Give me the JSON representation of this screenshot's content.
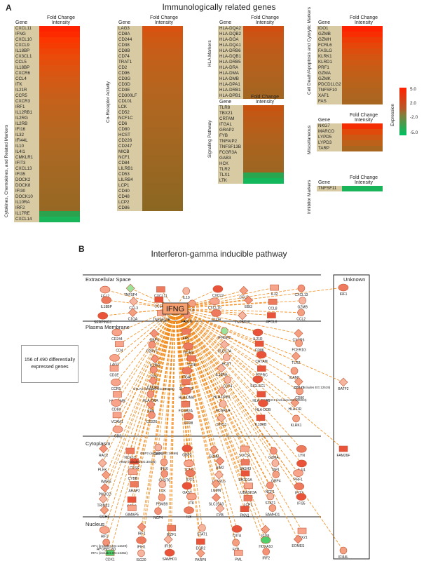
{
  "panel_a": {
    "letter": "A",
    "title": "Immunologically related genes",
    "gene_header": "Gene",
    "fc_header_1": "Fold Change",
    "fc_header_2": "Intensity",
    "groups": [
      {
        "label": "Cytokines, Chemokines, and Related Markers",
        "genes": [
          "CXCL11",
          "IFNG",
          "CXCL10",
          "CXCL9",
          "IL18BP",
          "CX3CL1",
          "CCL5",
          "IL18BP",
          "CXCR6",
          "CCL4",
          "ITK",
          "IL21R",
          "CCR5",
          "CXCR3",
          "IRF1",
          "IL12RB1",
          "IL2RG",
          "IL2RB",
          "IFI16",
          "IL32",
          "IFI44L",
          "IL10",
          "IL4I1",
          "CMKLR1",
          "IFIT3",
          "CXCL13",
          "IFI35",
          "DOCK2",
          "DOCK8",
          "IFI30",
          "DOCK10",
          "IL10RA",
          "IRF2",
          "IL17RE",
          "CXCL14"
        ],
        "colors": [
          "#ff2200",
          "#fd2a00",
          "#fb3600",
          "#f53d03",
          "#ef4407",
          "#ea4a0a",
          "#e44e0d",
          "#de530f",
          "#d95612",
          "#d35914",
          "#cf5b16",
          "#cb5d18",
          "#c75f1a",
          "#c4611b",
          "#c1621c",
          "#be631d",
          "#bb641e",
          "#b8651f",
          "#b56620",
          "#b36721",
          "#b06721",
          "#ae6822",
          "#ab6822",
          "#a96823",
          "#a76823",
          "#a56823",
          "#a36823",
          "#a16823",
          "#9f6823",
          "#9d6823",
          "#9b6823",
          "#996823",
          "#976823",
          "#2ba34e",
          "#18b55a"
        ]
      },
      {
        "label": "Co-Receptor Activity",
        "genes": [
          "LAG3",
          "CD8A",
          "CD244",
          "CD38",
          "CD8B",
          "CD74",
          "TRAT1",
          "CD2",
          "CD96",
          "CD3G",
          "CD3D",
          "CD3E",
          "CD300LF",
          "CD101",
          "LCK",
          "CD52",
          "NCF1C",
          "CD6",
          "CD80",
          "HCST",
          "CD226",
          "CD247",
          "MICB",
          "NCF1",
          "CD84",
          "LILRB1",
          "CD53",
          "LILRB4",
          "LCP1",
          "CD40",
          "CD48",
          "LCP2",
          "CD86"
        ],
        "colors": [
          "#d9520f",
          "#d25612",
          "#cd5915",
          "#c95b17",
          "#c65d18",
          "#c35f19",
          "#c0601a",
          "#bd611b",
          "#bb621c",
          "#b9631d",
          "#b7641e",
          "#b5651f",
          "#b3651f",
          "#b16620",
          "#af6620",
          "#ad6721",
          "#ab6721",
          "#a96722",
          "#a76722",
          "#a56722",
          "#a36722",
          "#a16722",
          "#9f6722",
          "#9d6722",
          "#9b6722",
          "#996722",
          "#976722",
          "#956722",
          "#936722",
          "#926722",
          "#906722",
          "#8e6722",
          "#8c6722"
        ]
      },
      {
        "label": "HLA Markers",
        "genes": [
          "HLA-DQA2",
          "HLA-DQB2",
          "HLA-DOA",
          "HLA-DQA1",
          "HLA-DRB6",
          "HLA-DQB1",
          "HLA-DRB5",
          "HLA-DRA",
          "HLA-DMA",
          "HLA-DMB",
          "HLA-DPA1",
          "HLA-DRB1",
          "HLA-DPB1"
        ],
        "colors": [
          "#d14d10",
          "#cb5313",
          "#c65716",
          "#c15a18",
          "#bd5c1a",
          "#b95e1b",
          "#b6601c",
          "#b3611d",
          "#b0621e",
          "#ad631f",
          "#aa6420",
          "#a76421",
          "#a46521"
        ]
      },
      {
        "label": "Signaling Pathway",
        "genes": [
          "TLR8",
          "TBX21",
          "CRTAM",
          "ITGAL",
          "GRAP2",
          "FYB",
          "TNFAIP2",
          "TNFSF13B",
          "FCGR3A",
          "GAB3",
          "HCK",
          "TLR2",
          "TLX1",
          "LTK"
        ],
        "colors": [
          "#c9520f",
          "#c35714",
          "#be5a17",
          "#ba5d19",
          "#b65f1b",
          "#b2611c",
          "#ae621d",
          "#aa631e",
          "#a6641f",
          "#a36520",
          "#a06520",
          "#9d6521",
          "#2aa650",
          "#14b85c"
        ]
      },
      {
        "label": "Cell Death/Apoptosis and Cytolytic Markers",
        "genes": [
          "IDO1",
          "GZMB",
          "GZMH",
          "FCRL6",
          "FASLG",
          "KLRK1",
          "KLRD1",
          "PRF1",
          "GZMA",
          "GZMK",
          "PDCD1LG2",
          "TNFSF10",
          "XAF1",
          "FAS"
        ],
        "colors": [
          "#ff2200",
          "#f82e02",
          "#ee3c06",
          "#e5460a",
          "#dc4e0e",
          "#d45411",
          "#cd5914",
          "#c75c17",
          "#c15f19",
          "#bc611b",
          "#b7631c",
          "#b2641e",
          "#ad651f",
          "#a86620"
        ]
      },
      {
        "label": "Miscellaneous",
        "genes": [
          "NKG7",
          "MARCO",
          "LYPD5",
          "LYPD3",
          "TARP"
        ],
        "colors": [
          "#f52d02",
          "#e04b0c",
          "#cc5814",
          "#bb6119",
          "#a9661e"
        ]
      },
      {
        "label": "Inhibitor Markers",
        "genes": [
          "TNFSF11"
        ],
        "colors": [
          "#19b45a"
        ]
      }
    ],
    "legend": {
      "title": "Expression",
      "ticks": [
        "5.0",
        "2.0",
        "-2.0",
        "-5.0"
      ],
      "high_color": "#ff2200",
      "low_color": "#00c060"
    }
  },
  "panel_b": {
    "letter": "B",
    "title": "Interferon-gamma inducible pathway",
    "sections": [
      "Extracellular Space",
      "Plasma Membrane",
      "Cytoplasm",
      "Nucleus"
    ],
    "unknown_label": "Unknown",
    "callout": "156 of 490 differentially expressed genes",
    "hub": "IFNG",
    "unknown_nodes": [
      "IRF1",
      "BATF2",
      "FAM26F",
      "IFI44L"
    ],
    "extracellular_nodes": [
      "FGL2",
      "TNFSF4",
      "CXCL11",
      "IL10",
      "CXCL9",
      "CCL5",
      "IL32",
      "CXCL13",
      "IL18BP",
      "CCL3",
      "CCL4",
      "C3",
      "CXCL10",
      "EBI3",
      "CCL8",
      "GZMB",
      "SERPING1",
      "C1QA",
      "TNFSF13B",
      "FASLG",
      "C1QB",
      "TNFSF10",
      "APOL6",
      "CCL2"
    ],
    "membrane_nodes": [
      "CD244",
      "GBP5",
      "FAS",
      "IFNGR2",
      "IL21R",
      "CXCR6",
      "CD4",
      "P2RY7",
      "ITGB2",
      "CLEC7A",
      "CD86",
      "FCER1G",
      "LAG3",
      "IL2RG",
      "TLR8",
      "HCST",
      "CRTAM",
      "TLR2",
      "CD3E",
      "CD6",
      "ITGAL",
      "IL10RA",
      "PTPRC",
      "ICAM1",
      "CCR5",
      "CXCR3",
      "SLAMF8",
      "CD74",
      "SIGLEC1",
      "CD247",
      "HLA-DMB",
      "HLA-DRA",
      "HLA-DMA",
      "HLA-DPB1",
      "HLA-DQA1",
      "CD80",
      "CD84",
      "SPN",
      "FCGR2A",
      "FCGR1A",
      "HLA-DOB",
      "HLA-DR",
      "VCAM1",
      "CD226",
      "CD38",
      "STX11",
      "IL10RB",
      "KLRK1",
      "CD2"
    ],
    "membrane_notes": [
      "CD1 (includes EG:12519)",
      "CTLA4 (includes EG:396030)",
      "MHC1 (includes EG:100204)"
    ],
    "cytoplasm_nodes": [
      "RAC2",
      "NCF1C",
      "GBP1",
      "GBP2",
      "GZMB",
      "SOCS1",
      "GZMA",
      "LYN",
      "PLEK",
      "CTSS",
      "IFI16",
      "TGM2",
      "AIM2",
      "SASH3",
      "TAP1",
      "IL4I1",
      "WARS",
      "CYBB",
      "CHST6",
      "IDO1",
      "UBE2L6",
      "SH2D1A",
      "GBP4",
      "PRF1",
      "PIK3CD",
      "ARAP2",
      "LCK",
      "OAS2",
      "LGMN",
      "UBASH3A",
      "NCF1",
      "IFIT3",
      "TRIM22",
      "CTSC",
      "PSMB9",
      "ITK",
      "SLC15A3",
      "LCP1",
      "STAT1",
      "IFI35",
      "GCH1",
      "GIMAP5",
      "NCF4",
      "IL8",
      "FYB",
      "PKN1",
      "SAMHD1"
    ],
    "cytoplasm_notes": [
      "GBP2 (includes EG:14469)",
      "AIM2 (includes EG:30486)"
    ],
    "nucleus_nodes": [
      "AIF1",
      "IRF1",
      "IKZF1",
      "STAT1",
      "CIITA",
      "IFI35",
      "TBX21",
      "APOBEC3G",
      "IFIH1",
      "IFI16",
      "EGR2",
      "FYB",
      "HOXA10",
      "EOMES",
      "CDX1",
      "ISG20",
      "SAMHD1",
      "PARP9",
      "PML",
      "IRF2"
    ],
    "nucleus_notes": [
      "AIF1 (includes EG:11629)",
      "IRF1 (includes EG:16362)"
    ]
  }
}
